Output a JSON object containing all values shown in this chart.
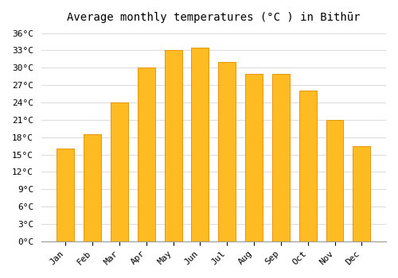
{
  "title": "Average monthly temperatures (°C ) in Bithūr",
  "months": [
    "Jan",
    "Feb",
    "Mar",
    "Apr",
    "May",
    "Jun",
    "Jul",
    "Aug",
    "Sep",
    "Oct",
    "Nov",
    "Dec"
  ],
  "values": [
    16,
    18.5,
    24,
    30,
    33,
    33.5,
    31,
    29,
    29,
    26,
    21,
    16.5
  ],
  "bar_color": "#FFBB22",
  "bar_edge_color": "#E8960A",
  "ylim": [
    0,
    37
  ],
  "yticks": [
    0,
    3,
    6,
    9,
    12,
    15,
    18,
    21,
    24,
    27,
    30,
    33,
    36
  ],
  "background_color": "#FFFFFF",
  "grid_color": "#DDDDDD",
  "title_fontsize": 10,
  "tick_fontsize": 8,
  "label_rotation": 45
}
